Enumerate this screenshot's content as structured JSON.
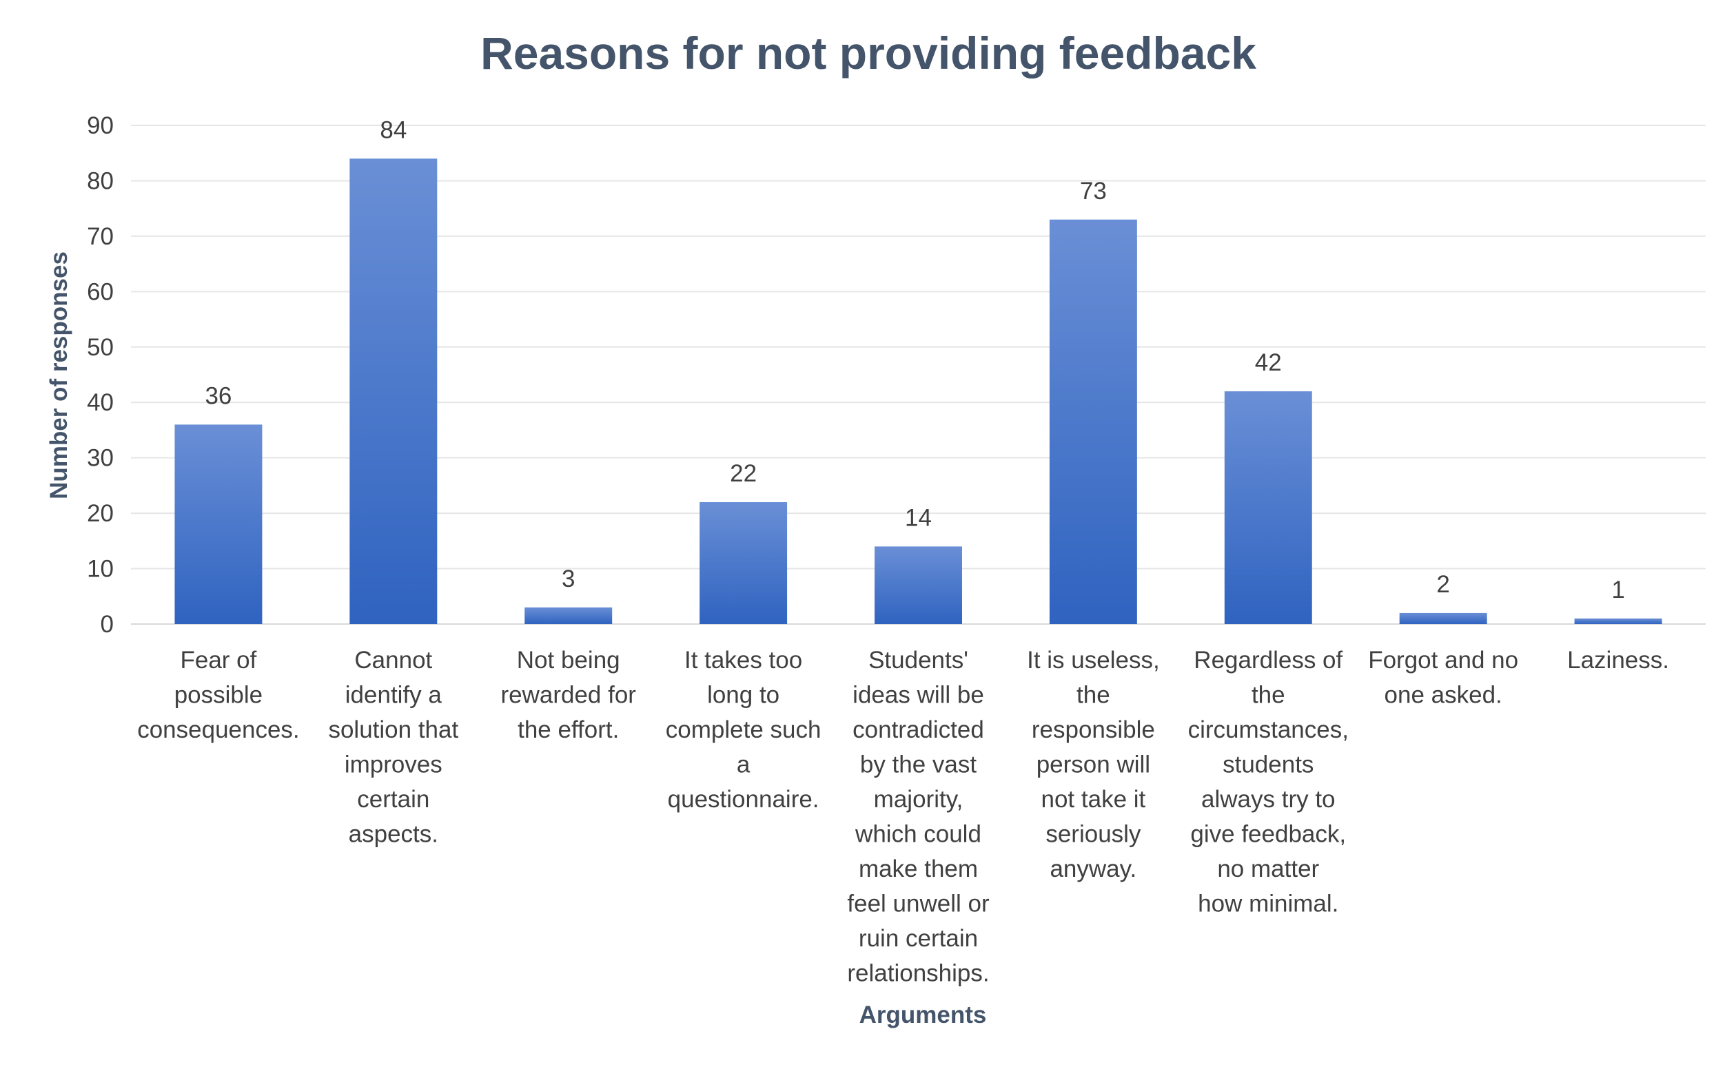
{
  "chart_data": {
    "type": "bar",
    "title": "Reasons for not providing feedback",
    "xlabel": "Arguments",
    "ylabel": "Number of  responses",
    "ylim": [
      0,
      90
    ],
    "yticks": [
      0,
      10,
      20,
      30,
      40,
      50,
      60,
      70,
      80,
      90
    ],
    "grid": true,
    "legend": "none",
    "bar_color": "#4472c4",
    "categories": [
      [
        "Fear of",
        "possible",
        "consequences."
      ],
      [
        "Cannot",
        "identify a",
        "solution that",
        "improves",
        "certain",
        "aspects."
      ],
      [
        "Not being",
        "rewarded for",
        "the effort."
      ],
      [
        "It takes too",
        "long to",
        "complete such",
        "a",
        "questionnaire."
      ],
      [
        "Students'",
        "ideas will be",
        "contradicted",
        "by the vast",
        "majority,",
        "which could",
        "make them",
        "feel unwell or",
        "ruin certain",
        "relationships."
      ],
      [
        "It is useless,",
        "the",
        "responsible",
        "person will",
        "not take it",
        "seriously",
        "anyway."
      ],
      [
        "Regardless of",
        "the",
        "circumstances,",
        "students",
        "always try to",
        "give feedback,",
        "no matter",
        "how minimal."
      ],
      [
        "Forgot and no",
        "one asked."
      ],
      [
        "Laziness."
      ]
    ],
    "values": [
      36,
      84,
      3,
      22,
      14,
      73,
      42,
      2,
      1
    ]
  }
}
